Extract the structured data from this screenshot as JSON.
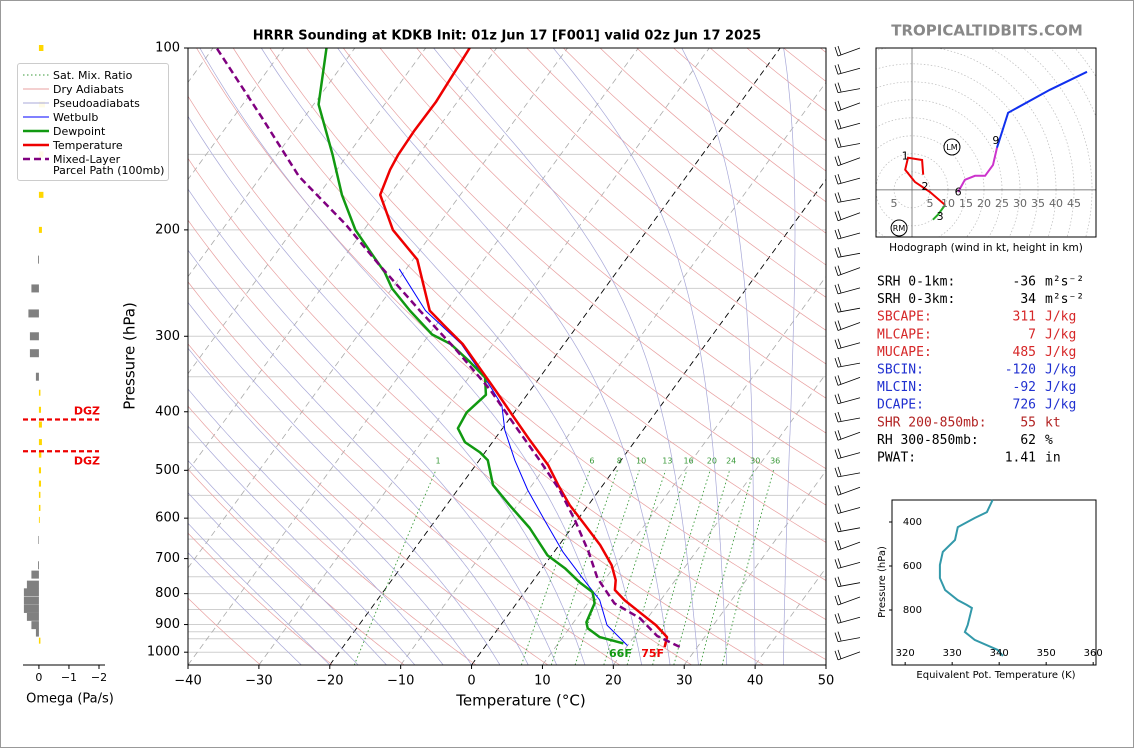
{
  "page": {
    "watermark": "TROPICALTIDBITS.COM"
  },
  "parameters": [
    {
      "label": "SRH 0-1km:",
      "value": -36,
      "unit": "m²s⁻²",
      "color": "#000000"
    },
    {
      "label": "SRH 0-3km:",
      "value": 34,
      "unit": "m²s⁻²",
      "color": "#000000"
    },
    {
      "label": "SBCAPE:",
      "value": 311,
      "unit": "J/kg",
      "color": "#d62728"
    },
    {
      "label": "MLCAPE:",
      "value": 7,
      "unit": "J/kg",
      "color": "#d62728"
    },
    {
      "label": "MUCAPE:",
      "value": 485,
      "unit": "J/kg",
      "color": "#d62728"
    },
    {
      "label": "SBCIN:",
      "value": -120,
      "unit": "J/kg",
      "color": "#2030d0"
    },
    {
      "label": "MLCIN:",
      "value": -92,
      "unit": "J/kg",
      "color": "#2030d0"
    },
    {
      "label": "DCAPE:",
      "value": 726,
      "unit": "J/kg",
      "color": "#2030d0"
    },
    {
      "label": "SHR 200-850mb:",
      "value": 55,
      "unit": "kt",
      "color": "#b22222"
    },
    {
      "label": "RH 300-850mb:",
      "value": 62,
      "unit": "%",
      "color": "#000000"
    },
    {
      "label": "PWAT:",
      "value": 1.41,
      "unit": "in",
      "color": "#000000"
    }
  ],
  "chart_data": [
    {
      "type": "skewt",
      "title": "HRRR Sounding at KDKB Init: 01z Jun 17 [F001] valid 02z Jun 17 2025",
      "x_label": "Temperature (°C)",
      "y_label": "Pressure (hPa)",
      "xlim": [
        -40,
        50
      ],
      "xticks": [
        {
          "value": -40,
          "label": "−40"
        },
        {
          "value": -30,
          "label": "−30"
        },
        {
          "value": -20,
          "label": "−20"
        },
        {
          "value": -10,
          "label": "−10"
        },
        0,
        10,
        20,
        30,
        40,
        50
      ],
      "ylim": [
        1050,
        100
      ],
      "yscale": "log",
      "yticks": [
        100,
        200,
        300,
        400,
        500,
        600,
        700,
        800,
        900,
        1000
      ],
      "grid_pressures": [
        150,
        250,
        350,
        450,
        550,
        650,
        750,
        850,
        925,
        950
      ],
      "grid": true,
      "legend": "upper left",
      "reference_lines": [
        {
          "name": "Sat. Mix. Ratio",
          "color": "#3a9a3a",
          "style": "dotted"
        },
        {
          "name": "Dry Adiabats",
          "color": "#e8a0a0",
          "style": "thin"
        },
        {
          "name": "Pseudoadiabats",
          "color": "#a8a8d8",
          "style": "thin"
        }
      ],
      "mixing_ratio_labels": [
        1,
        6,
        8,
        10,
        13,
        16,
        20,
        24,
        30,
        36
      ],
      "series": [
        {
          "name": "Wetbulb",
          "color": "#0000ff",
          "style": "thin",
          "y": [
            975,
            902,
            820,
            754,
            683,
            605,
            539,
            481,
            429,
            390,
            362,
            309,
            272,
            232
          ],
          "x": [
            20,
            15,
            11.4,
            6.7,
            1.3,
            -4.6,
            -10.1,
            -15,
            -19.5,
            -22.5,
            -26.2,
            -34.5,
            -43,
            -51
          ]
        },
        {
          "name": "Dewpoint",
          "color": "#119911",
          "style": "solid",
          "y": [
            967,
            944,
            913,
            892,
            830,
            796,
            766,
            726,
            691,
            623,
            571,
            529,
            481,
            467,
            449,
            426,
            401,
            375,
            351,
            331,
            309,
            298,
            272,
            250,
            235,
            223,
            200,
            175,
            150,
            124,
            100
          ],
          "x": [
            19.2,
            15.2,
            12.6,
            11.8,
            11,
            9.6,
            6.7,
            3.2,
            -0.6,
            -5.9,
            -11.1,
            -15.5,
            -18.8,
            -20.7,
            -23.9,
            -26.3,
            -26.7,
            -25.8,
            -27.7,
            -31.4,
            -36,
            -39.6,
            -45.2,
            -50,
            -52.7,
            -55.5,
            -61.2,
            -66.7,
            -72.2,
            -79.3,
            -84
          ]
        },
        {
          "name": "Temperature",
          "color": "#ee0000",
          "style": "solid",
          "y": [
            981,
            944,
            902,
            859,
            820,
            789,
            760,
            718,
            665,
            616,
            571,
            529,
            490,
            446,
            405,
            368,
            335,
            309,
            288,
            272,
            224,
            200,
            175,
            159,
            150,
            137,
            123,
            100
          ],
          "x": [
            25.4,
            24.7,
            21.9,
            18.3,
            14.9,
            12.5,
            11.6,
            9.5,
            5.8,
            1.6,
            -2.6,
            -6.3,
            -9.8,
            -14.9,
            -20,
            -25,
            -30,
            -34.3,
            -38.8,
            -42.4,
            -49.4,
            -55.9,
            -61.3,
            -62.5,
            -62.9,
            -63.1,
            -63,
            -63.8
          ]
        },
        {
          "name": "Mixed-Layer\nParcel Path (100mb)",
          "color": "#800080",
          "style": "dashed",
          "y": [
            980,
            940,
            878,
            830,
            754,
            683,
            605,
            539,
            481,
            429,
            368,
            315,
            272,
            229,
            196,
            163,
            130,
            100
          ],
          "x": [
            27.5,
            23.2,
            18.9,
            13.8,
            8.8,
            4.9,
            -0.3,
            -5.6,
            -11.5,
            -17.6,
            -25.7,
            -34.8,
            -43.8,
            -54.1,
            -63.1,
            -74.7,
            -86.1,
            -99.5
          ]
        }
      ],
      "surface_labels": [
        {
          "text": "66F",
          "color": "#119911"
        },
        {
          "text": "75F",
          "color": "#ee0000"
        }
      ]
    },
    {
      "type": "hodograph",
      "caption": "Hodograph (wind in kt, height in km)",
      "xlim": [
        -10,
        51.1
      ],
      "ylim": [
        -13.1,
        39.4
      ],
      "ring_labels": [
        {
          "value": -5,
          "label": "5"
        },
        5,
        10,
        15,
        20,
        25,
        30,
        35,
        40,
        45
      ],
      "segments": [
        {
          "color": "#ee0000",
          "x": [
            3.1,
            2.8,
            -1.1,
            -1.9,
            0.8,
            5,
            9.2
          ],
          "y": [
            4.2,
            8.3,
            8.9,
            5.6,
            2.2,
            -0.6,
            -4.2
          ]
        },
        {
          "color": "#22aa22",
          "x": [
            9.2,
            7.2,
            5.8
          ],
          "y": [
            -4.2,
            -6.9,
            -8.3
          ]
        },
        {
          "color": "#cc33cc",
          "x": [
            12.8,
            14.7,
            17.5,
            20.3,
            22.5,
            23.6
          ],
          "y": [
            -0.6,
            2.8,
            3.9,
            3.9,
            6.9,
            11.7
          ]
        },
        {
          "color": "#1030ee",
          "x": [
            23.6,
            26.7,
            38.3,
            48.6
          ],
          "y": [
            11.7,
            21.4,
            27.8,
            32.8
          ]
        }
      ],
      "height_labels": [
        {
          "text": "1",
          "x": -1.9,
          "y": 9.2
        },
        {
          "text": "2",
          "x": 3.6,
          "y": 0.8
        },
        {
          "text": "3",
          "x": 7.8,
          "y": -7.5
        },
        {
          "text": "6",
          "x": 12.8,
          "y": -0.8
        },
        {
          "text": "9",
          "x": 23.3,
          "y": 13.6
        }
      ],
      "storm_motion": [
        {
          "text": "LM",
          "x": 11.1,
          "y": 11.9
        },
        {
          "text": "RM",
          "x": -3.6,
          "y": -10.6
        }
      ]
    },
    {
      "type": "line",
      "x_label": "Equivalent Pot. Temperature (K)",
      "y_label": "Pressure (hPa)",
      "xlim": [
        317.2,
        360.6
      ],
      "xticks": [
        320,
        330,
        340,
        350,
        360
      ],
      "ylim": [
        1050,
        300
      ],
      "yticks": [
        400,
        600,
        800
      ],
      "color": "#3399aa",
      "x": [
        338.6,
        337.4,
        334.8,
        331.2,
        330.6,
        328,
        327.4,
        327.4,
        328.5,
        331.2,
        333.1,
        334.2,
        333.3,
        332.7,
        334.8,
        339.7,
        340.8
      ],
      "y": [
        300,
        355,
        382,
        423,
        482,
        536,
        595,
        655,
        709,
        755,
        777,
        791,
        868,
        900,
        936,
        982,
        1009
      ]
    },
    {
      "type": "bar",
      "x_label": "Omega (Pa/s)",
      "xlim": [
        0.53,
        -2.2
      ],
      "xticks": [
        0,
        {
          "value": -1,
          "label": "−1"
        },
        {
          "value": -2,
          "label": "−2"
        }
      ],
      "positive_color": "#808080",
      "negative_color": "#ffd700",
      "y": [
        100,
        124,
        150,
        175,
        200,
        224,
        250,
        275,
        300,
        320,
        350,
        372,
        397,
        420,
        449,
        471,
        500,
        526,
        549,
        577,
        604,
        652,
        718,
        744,
        773,
        796,
        822,
        848,
        874,
        902,
        928,
        957
      ],
      "values": [
        -0.15,
        -0.2,
        -0.15,
        -0.15,
        -0.1,
        0.03,
        0.25,
        0.35,
        0.3,
        0.3,
        0.1,
        -0.05,
        -0.07,
        -0.1,
        -0.1,
        -0.08,
        -0.07,
        -0.07,
        -0.05,
        -0.05,
        -0.03,
        0.02,
        0.03,
        0.25,
        0.4,
        0.5,
        0.5,
        0.5,
        0.4,
        0.25,
        0.1,
        -0.05
      ],
      "dgz": {
        "label": "DGZ",
        "pressures": [
          412,
          465
        ],
        "color": "#ee0000"
      }
    }
  ]
}
